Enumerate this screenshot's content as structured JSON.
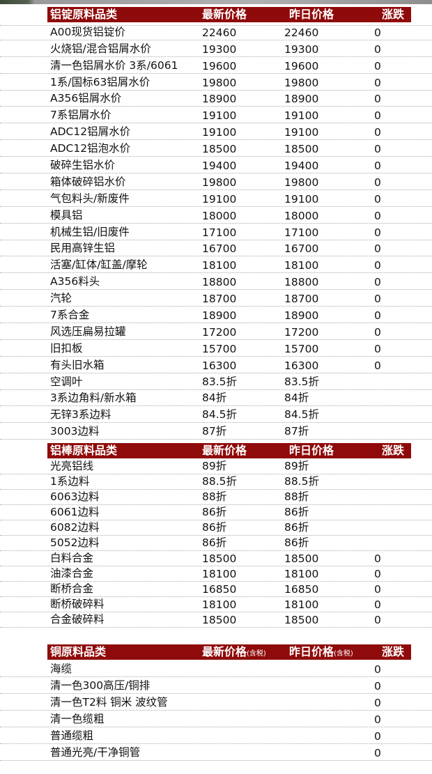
{
  "sections": [
    {
      "title": "铝锭原料品类",
      "col_latest": "最新价格",
      "col_latest_note": "",
      "col_yesterday": "昨日价格",
      "col_yesterday_note": "",
      "col_change": "涨跌",
      "rows": [
        [
          "A00现货铝锭价",
          "22460",
          "22460",
          "0"
        ],
        [
          "火烧铝/混合铝屑水价",
          "19300",
          "19300",
          "0"
        ],
        [
          "清一色铝屑水价 3系/6061",
          "19600",
          "19600",
          "0"
        ],
        [
          "1系/国标63铝屑水价",
          "19800",
          "19800",
          "0"
        ],
        [
          "A356铝屑水价",
          "18900",
          "18900",
          "0"
        ],
        [
          "7系铝屑水价",
          "19100",
          "19100",
          "0"
        ],
        [
          "ADC12铝屑水价",
          "19100",
          "19100",
          "0"
        ],
        [
          "ADC12铝泡水价",
          "18500",
          "18500",
          "0"
        ],
        [
          "破碎生铝水价",
          "19400",
          "19400",
          "0"
        ],
        [
          "箱体破碎铝水价",
          "19800",
          "19800",
          "0"
        ],
        [
          "气包料头/新废件",
          "19100",
          "19100",
          "0"
        ],
        [
          "模具铝",
          "18000",
          "18000",
          "0"
        ],
        [
          "机械生铝/旧废件",
          "17100",
          "17100",
          "0"
        ],
        [
          "民用高锌生铝",
          "16700",
          "16700",
          "0"
        ],
        [
          "活塞/缸体/缸盖/摩轮",
          "18100",
          "18100",
          "0"
        ],
        [
          "A356料头",
          "18800",
          "18800",
          "0"
        ],
        [
          "汽轮",
          "18700",
          "18700",
          "0"
        ],
        [
          "7系合金",
          "18900",
          "18900",
          "0"
        ],
        [
          "风选压扁易拉罐",
          "17200",
          "17200",
          "0"
        ],
        [
          "旧扣板",
          "15700",
          "15700",
          "0"
        ],
        [
          "有头旧水箱",
          "16300",
          "16300",
          "0"
        ],
        [
          "空调叶",
          "83.5折",
          "83.5折",
          ""
        ],
        [
          "3系边角料/新水箱",
          "84折",
          "84折",
          ""
        ],
        [
          "无锌3系边料",
          "84.5折",
          "84.5折",
          ""
        ],
        [
          "3003边料",
          "87折",
          "87折",
          ""
        ]
      ]
    },
    {
      "title": "铝棒原料品类",
      "col_latest": "最新价格",
      "col_latest_note": "",
      "col_yesterday": "昨日价格",
      "col_yesterday_note": "",
      "col_change": "涨跌",
      "rows": [
        [
          "光亮铝线",
          "89折",
          "89折",
          ""
        ],
        [
          "1系边料",
          "88.5折",
          "88.5折",
          ""
        ],
        [
          "6063边料",
          "88折",
          "88折",
          ""
        ],
        [
          "6061边料",
          "86折",
          "86折",
          ""
        ],
        [
          "6082边料",
          "86折",
          "86折",
          ""
        ],
        [
          "5052边料",
          "86折",
          "86折",
          ""
        ],
        [
          "白料合金",
          "18500",
          "18500",
          "0"
        ],
        [
          "油漆合金",
          "18100",
          "18100",
          "0"
        ],
        [
          "断桥合金",
          "16850",
          "16850",
          "0"
        ],
        [
          "断桥破碎料",
          "18100",
          "18100",
          "0"
        ],
        [
          "合金破碎料",
          "18500",
          "18500",
          "0"
        ]
      ]
    },
    {
      "title": "铜原料品类",
      "col_latest": "最新价格",
      "col_latest_note": "(含税)",
      "col_yesterday": "昨日价格",
      "col_yesterday_note": "(含税)",
      "col_change": "涨跌",
      "rows": [
        [
          "海缆",
          "",
          "",
          "0"
        ],
        [
          "清一色300高压/铜排",
          "",
          "",
          "0"
        ],
        [
          "清一色T2料 铜米 波纹管",
          "",
          "",
          "0"
        ],
        [
          "清一色缆粗",
          "",
          "",
          "0"
        ],
        [
          "普通缆粗",
          "",
          "",
          "0"
        ],
        [
          "普通光亮/干净铜管",
          "",
          "",
          "0"
        ]
      ]
    }
  ],
  "colors": {
    "header_bg": "#8f0a0a",
    "header_text": "#ffffff"
  }
}
